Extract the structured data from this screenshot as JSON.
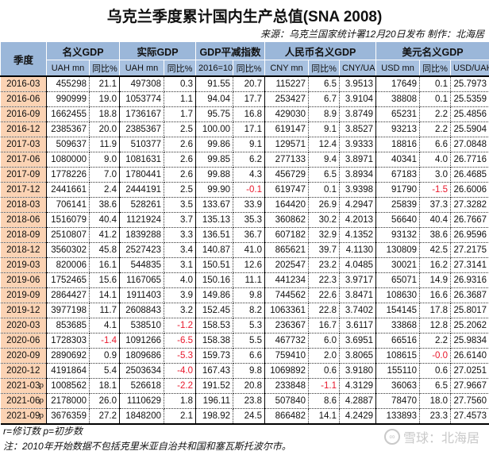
{
  "title": "乌克兰季度累计国内生产总值(SNA 2008)",
  "source": "来源：乌克兰国家统计署12月20日发布 制作：北海居",
  "header": {
    "quarter": "季度",
    "groups": [
      {
        "label": "名义GDP",
        "cols": [
          "UAH mn",
          "同比%"
        ]
      },
      {
        "label": "实际GDP",
        "cols": [
          "UAH mn",
          "同比%"
        ]
      },
      {
        "label": "GDP平减指数",
        "cols": [
          "2016=100",
          "同比%"
        ]
      },
      {
        "label": "人民币名义GDP",
        "cols": [
          "CNY mn",
          "同比%",
          "CNY/UAH"
        ]
      },
      {
        "label": "美元名义GDP",
        "cols": [
          "USD mn",
          "同比%",
          "USD/UAH"
        ]
      }
    ]
  },
  "rows": [
    {
      "q": "2016-03",
      "mark": "",
      "nom": "455298",
      "nom_yoy": "21.1",
      "real": "497308",
      "real_yoy": "0.3",
      "defl": "91.55",
      "defl_yoy": "20.7",
      "cny": "115227",
      "cny_yoy": "6.5",
      "cny_rate": "3.9513",
      "usd": "17649",
      "usd_yoy": "0.1",
      "usd_rate": "25.7973"
    },
    {
      "q": "2016-06",
      "mark": "",
      "nom": "990999",
      "nom_yoy": "19.0",
      "real": "1053774",
      "real_yoy": "1.1",
      "defl": "94.04",
      "defl_yoy": "17.7",
      "cny": "253427",
      "cny_yoy": "6.7",
      "cny_rate": "3.9104",
      "usd": "38808",
      "usd_yoy": "0.1",
      "usd_rate": "25.5359"
    },
    {
      "q": "2016-09",
      "mark": "",
      "nom": "1662455",
      "nom_yoy": "18.8",
      "real": "1736167",
      "real_yoy": "1.7",
      "defl": "95.75",
      "defl_yoy": "16.8",
      "cny": "429030",
      "cny_yoy": "8.9",
      "cny_rate": "3.8749",
      "usd": "65231",
      "usd_yoy": "2.2",
      "usd_rate": "25.4856"
    },
    {
      "q": "2016-12",
      "mark": "",
      "nom": "2385367",
      "nom_yoy": "20.0",
      "real": "2385367",
      "real_yoy": "2.5",
      "defl": "100.00",
      "defl_yoy": "17.1",
      "cny": "619147",
      "cny_yoy": "9.1",
      "cny_rate": "3.8527",
      "usd": "93213",
      "usd_yoy": "2.2",
      "usd_rate": "25.5904"
    },
    {
      "q": "2017-03",
      "mark": "",
      "nom": "509637",
      "nom_yoy": "11.9",
      "real": "510377",
      "real_yoy": "2.6",
      "defl": "99.86",
      "defl_yoy": "9.1",
      "cny": "129571",
      "cny_yoy": "12.4",
      "cny_rate": "3.9333",
      "usd": "18816",
      "usd_yoy": "6.6",
      "usd_rate": "27.0848"
    },
    {
      "q": "2017-06",
      "mark": "",
      "nom": "1080000",
      "nom_yoy": "9.0",
      "real": "1081631",
      "real_yoy": "2.6",
      "defl": "99.85",
      "defl_yoy": "6.2",
      "cny": "277133",
      "cny_yoy": "9.4",
      "cny_rate": "3.8971",
      "usd": "40341",
      "usd_yoy": "4.0",
      "usd_rate": "26.7716"
    },
    {
      "q": "2017-09",
      "mark": "",
      "nom": "1778226",
      "nom_yoy": "7.0",
      "real": "1780441",
      "real_yoy": "2.6",
      "defl": "99.88",
      "defl_yoy": "4.3",
      "cny": "456729",
      "cny_yoy": "6.5",
      "cny_rate": "3.8934",
      "usd": "67183",
      "usd_yoy": "3.0",
      "usd_rate": "26.4685"
    },
    {
      "q": "2017-12",
      "mark": "",
      "nom": "2441661",
      "nom_yoy": "2.4",
      "real": "2444191",
      "real_yoy": "2.5",
      "defl": "99.90",
      "defl_yoy": "-0.1",
      "cny": "619747",
      "cny_yoy": "0.1",
      "cny_rate": "3.9398",
      "usd": "91790",
      "usd_yoy": "-1.5",
      "usd_rate": "26.6006"
    },
    {
      "q": "2018-03",
      "mark": "",
      "nom": "706141",
      "nom_yoy": "38.6",
      "real": "528261",
      "real_yoy": "3.5",
      "defl": "133.67",
      "defl_yoy": "33.9",
      "cny": "164420",
      "cny_yoy": "26.9",
      "cny_rate": "4.2947",
      "usd": "25839",
      "usd_yoy": "37.3",
      "usd_rate": "27.3282"
    },
    {
      "q": "2018-06",
      "mark": "",
      "nom": "1516079",
      "nom_yoy": "40.4",
      "real": "1121924",
      "real_yoy": "3.7",
      "defl": "135.13",
      "defl_yoy": "35.3",
      "cny": "360862",
      "cny_yoy": "30.2",
      "cny_rate": "4.2013",
      "usd": "56640",
      "usd_yoy": "40.4",
      "usd_rate": "26.7667"
    },
    {
      "q": "2018-09",
      "mark": "",
      "nom": "2510807",
      "nom_yoy": "41.2",
      "real": "1839288",
      "real_yoy": "3.3",
      "defl": "136.51",
      "defl_yoy": "36.7",
      "cny": "607182",
      "cny_yoy": "32.9",
      "cny_rate": "4.1352",
      "usd": "93132",
      "usd_yoy": "38.6",
      "usd_rate": "26.9596"
    },
    {
      "q": "2018-12",
      "mark": "",
      "nom": "3560302",
      "nom_yoy": "45.8",
      "real": "2527423",
      "real_yoy": "3.4",
      "defl": "140.87",
      "defl_yoy": "41.0",
      "cny": "865621",
      "cny_yoy": "39.7",
      "cny_rate": "4.1130",
      "usd": "130809",
      "usd_yoy": "42.5",
      "usd_rate": "27.2175"
    },
    {
      "q": "2019-03",
      "mark": "",
      "nom": "820006",
      "nom_yoy": "16.1",
      "real": "544835",
      "real_yoy": "3.1",
      "defl": "150.51",
      "defl_yoy": "12.6",
      "cny": "202547",
      "cny_yoy": "23.2",
      "cny_rate": "4.0485",
      "usd": "30021",
      "usd_yoy": "16.2",
      "usd_rate": "27.3141"
    },
    {
      "q": "2019-06",
      "mark": "",
      "nom": "1752465",
      "nom_yoy": "15.6",
      "real": "1167065",
      "real_yoy": "4.0",
      "defl": "150.16",
      "defl_yoy": "11.1",
      "cny": "441234",
      "cny_yoy": "22.3",
      "cny_rate": "3.9717",
      "usd": "65071",
      "usd_yoy": "14.9",
      "usd_rate": "26.9316"
    },
    {
      "q": "2019-09",
      "mark": "",
      "nom": "2864427",
      "nom_yoy": "14.1",
      "real": "1911403",
      "real_yoy": "3.9",
      "defl": "149.86",
      "defl_yoy": "9.8",
      "cny": "744562",
      "cny_yoy": "22.6",
      "cny_rate": "3.8471",
      "usd": "108630",
      "usd_yoy": "16.6",
      "usd_rate": "26.3687"
    },
    {
      "q": "2019-12",
      "mark": "",
      "nom": "3977198",
      "nom_yoy": "11.7",
      "real": "2608843",
      "real_yoy": "3.2",
      "defl": "152.45",
      "defl_yoy": "8.2",
      "cny": "1063361",
      "cny_yoy": "22.8",
      "cny_rate": "3.7402",
      "usd": "154145",
      "usd_yoy": "17.8",
      "usd_rate": "25.8017"
    },
    {
      "q": "2020-03",
      "mark": "",
      "nom": "853685",
      "nom_yoy": "4.1",
      "real": "538510",
      "real_yoy": "-1.2",
      "defl": "158.53",
      "defl_yoy": "5.3",
      "cny": "236367",
      "cny_yoy": "16.7",
      "cny_rate": "3.6117",
      "usd": "33868",
      "usd_yoy": "12.8",
      "usd_rate": "25.2062"
    },
    {
      "q": "2020-06",
      "mark": "",
      "nom": "1728303",
      "nom_yoy": "-1.4",
      "real": "1091266",
      "real_yoy": "-6.5",
      "defl": "158.38",
      "defl_yoy": "5.5",
      "cny": "467732",
      "cny_yoy": "6.0",
      "cny_rate": "3.6951",
      "usd": "66516",
      "usd_yoy": "2.2",
      "usd_rate": "25.9834"
    },
    {
      "q": "2020-09",
      "mark": "",
      "nom": "2890692",
      "nom_yoy": "0.9",
      "real": "1809686",
      "real_yoy": "-5.3",
      "defl": "159.73",
      "defl_yoy": "6.6",
      "cny": "759410",
      "cny_yoy": "2.0",
      "cny_rate": "3.8065",
      "usd": "108615",
      "usd_yoy": "-0.0",
      "usd_rate": "26.6140"
    },
    {
      "q": "2020-12",
      "mark": "",
      "nom": "4191864",
      "nom_yoy": "5.4",
      "real": "2503634",
      "real_yoy": "-4.0",
      "defl": "167.43",
      "defl_yoy": "9.8",
      "cny": "1069892",
      "cny_yoy": "0.6",
      "cny_rate": "3.9180",
      "usd": "155110",
      "usd_yoy": "0.6",
      "usd_rate": "27.0251"
    },
    {
      "q": "2021-03",
      "mark": "p",
      "nom": "1008562",
      "nom_yoy": "18.1",
      "real": "526618",
      "real_yoy": "-2.2",
      "defl": "191.52",
      "defl_yoy": "20.8",
      "cny": "233848",
      "cny_yoy": "-1.1",
      "cny_rate": "4.3129",
      "usd": "36063",
      "usd_yoy": "6.5",
      "usd_rate": "27.9667"
    },
    {
      "q": "2021-06",
      "mark": "p",
      "nom": "2178000",
      "nom_yoy": "26.0",
      "real": "1110629",
      "real_yoy": "1.8",
      "defl": "196.11",
      "defl_yoy": "23.8",
      "cny": "507840",
      "cny_yoy": "8.6",
      "cny_rate": "4.2887",
      "usd": "78470",
      "usd_yoy": "18.0",
      "usd_rate": "27.7560"
    },
    {
      "q": "2021-09",
      "mark": "p",
      "nom": "3676359",
      "nom_yoy": "27.2",
      "real": "1848200",
      "real_yoy": "2.1",
      "defl": "198.92",
      "defl_yoy": "24.5",
      "cny": "866482",
      "cny_yoy": "14.1",
      "cny_rate": "4.2429",
      "usd": "133893",
      "usd_yoy": "23.3",
      "usd_rate": "27.4573"
    }
  ],
  "footnotes": {
    "legend": "r=修订数 p=初步数",
    "note": "注：2010年开始数据不包括克里米亚自治共和国和塞瓦斯托波尔市。"
  },
  "watermark": {
    "icon": "snowball-icon",
    "text": "雪球：北海居"
  },
  "colors": {
    "header_bg": "#9bb7d9",
    "quarter_bg": "#fbd3b4",
    "negative": "#e8182c"
  }
}
